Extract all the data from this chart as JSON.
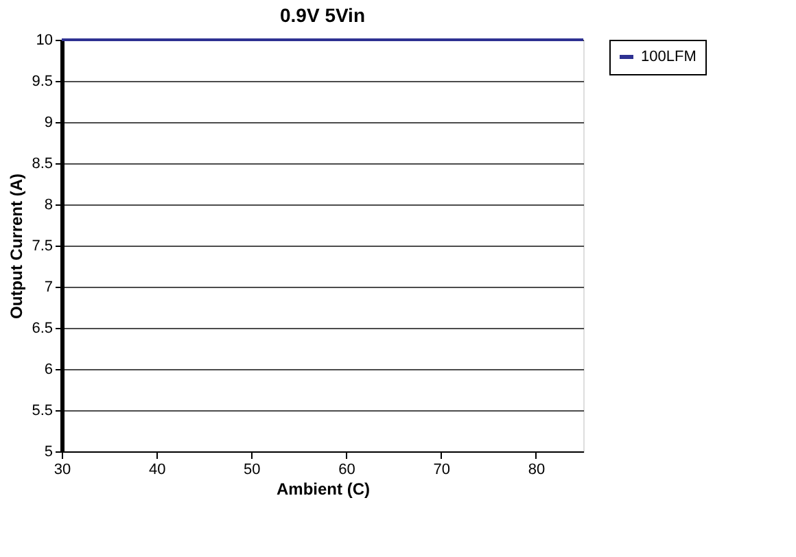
{
  "chart_data": {
    "type": "line",
    "title": "0.9V 5Vin",
    "xlabel": "Ambient (C)",
    "ylabel": "Output Current (A)",
    "x": [
      30,
      85
    ],
    "series": [
      {
        "name": "100LFM",
        "color": "#2e3192",
        "values": [
          10,
          10
        ]
      }
    ],
    "xlim": [
      30,
      85
    ],
    "xticks": [
      30,
      40,
      50,
      60,
      70,
      80
    ],
    "ylim": [
      5,
      10
    ],
    "yticks": [
      5,
      5.5,
      6,
      6.5,
      7,
      7.5,
      8,
      8.5,
      9,
      9.5,
      10
    ],
    "grid": "y",
    "legend": "right",
    "marker": "none",
    "line_style": "solid"
  }
}
